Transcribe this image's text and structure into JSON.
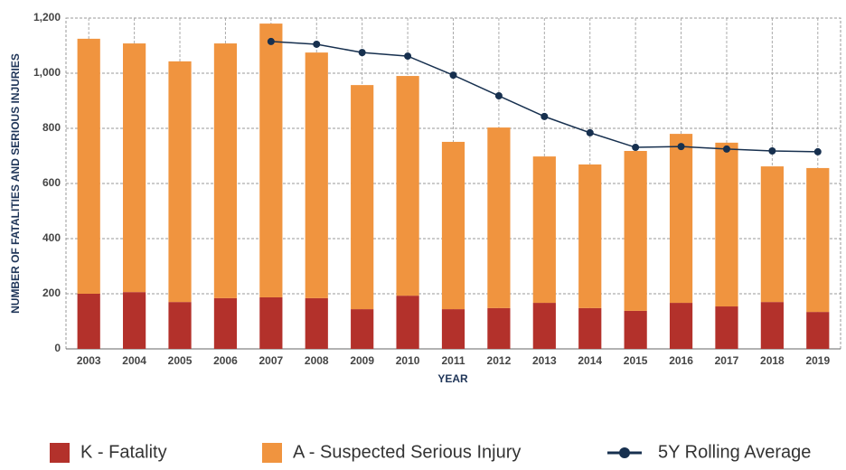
{
  "chart_data": {
    "type": "bar",
    "stacked": true,
    "x_label": "YEAR",
    "y_label": "NUMBER OF FATALITIES AND SERIOUS INJURIES",
    "categories": [
      "2003",
      "2004",
      "2005",
      "2006",
      "2007",
      "2008",
      "2009",
      "2010",
      "2011",
      "2012",
      "2013",
      "2014",
      "2015",
      "2016",
      "2017",
      "2018",
      "2019"
    ],
    "series": [
      {
        "name": "K - Fatality",
        "type": "bar",
        "color": "#b3312b",
        "values": [
          200,
          206,
          170,
          184,
          187,
          184,
          144,
          193,
          144,
          148,
          167,
          148,
          138,
          167,
          154,
          170,
          134
        ]
      },
      {
        "name": "A - Suspected Serious Injury",
        "type": "bar",
        "color": "#f0943f",
        "values": [
          925,
          902,
          873,
          924,
          993,
          891,
          813,
          797,
          607,
          655,
          531,
          521,
          580,
          613,
          594,
          492,
          522
        ]
      },
      {
        "name": "5Y Rolling Average",
        "type": "line",
        "color": "#17304f",
        "values": [
          null,
          null,
          null,
          null,
          1115,
          1105,
          1075,
          1062,
          993,
          918,
          843,
          784,
          731,
          734,
          725,
          718,
          715
        ]
      }
    ],
    "ylim": [
      0,
      1200
    ],
    "yticks": [
      0,
      200,
      400,
      600,
      800,
      {
        "value": 1000,
        "label": "1,000"
      },
      {
        "value": 1200,
        "label": "1,200"
      }
    ],
    "grid": true,
    "legend": "bottom"
  }
}
